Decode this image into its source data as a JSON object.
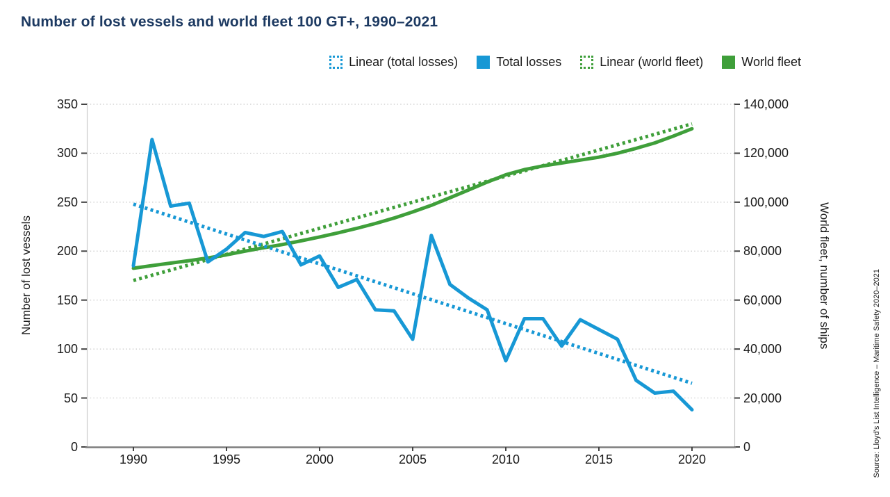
{
  "title": "Number of lost vessels and world fleet 100 GT+, 1990–2021",
  "colors": {
    "blue": "#1798d5",
    "green": "#3f9f3a",
    "title_navy": "#1c3961",
    "gridline": "#c9c9c9",
    "x_axis_line": "#7d7d7d",
    "tick_mark": "#444444"
  },
  "legend": {
    "items": [
      {
        "label": "Linear (total losses)",
        "style": "dotted",
        "color": "#1798d5"
      },
      {
        "label": "Total losses",
        "style": "solid",
        "color": "#1798d5"
      },
      {
        "label": "Linear (world fleet)",
        "style": "dotted",
        "color": "#3f9f3a"
      },
      {
        "label": "World fleet",
        "style": "solid",
        "color": "#3f9f3a"
      }
    ]
  },
  "axes": {
    "left": {
      "title": "Number of lost vessels",
      "ticks": [
        "350",
        "300",
        "250",
        "200",
        "150",
        "100",
        "50",
        "0"
      ]
    },
    "right": {
      "title": "World fleet, number of ships",
      "ticks": [
        "140,000",
        "120,000",
        "100,000",
        "80,000",
        "60,000",
        "40,000",
        "20,000",
        "0"
      ]
    },
    "x": {
      "ticks": [
        "1990",
        "1995",
        "2000",
        "2005",
        "2010",
        "2015",
        "2020"
      ]
    }
  },
  "source": "Source: Lloyd's List Intelligence – Maritime Safety 2020–2021",
  "chart_data": {
    "type": "line",
    "title": "Number of lost vessels and world fleet 100 GT+, 1990–2021",
    "ylabel_left": "Number of lost vessels",
    "ylabel_right": "World fleet, number of ships",
    "ylim_left": [
      0,
      350
    ],
    "ylim_right": [
      0,
      140000
    ],
    "xlim": [
      1990,
      2021
    ],
    "grid": true,
    "legend_position": "top",
    "x": [
      1990,
      1991,
      1992,
      1993,
      1994,
      1995,
      1996,
      1997,
      1998,
      1999,
      2000,
      2001,
      2002,
      2003,
      2004,
      2005,
      2006,
      2007,
      2008,
      2009,
      2010,
      2011,
      2012,
      2013,
      2014,
      2015,
      2016,
      2017,
      2018,
      2019,
      2020
    ],
    "series": [
      {
        "name": "World fleet",
        "axis": "right",
        "style": "solid",
        "color": "#3f9f3a",
        "values": [
          73000,
          74100,
          75100,
          76100,
          77200,
          78500,
          80000,
          81400,
          82700,
          84200,
          85800,
          87500,
          89300,
          91300,
          93500,
          96000,
          98700,
          101800,
          105000,
          108200,
          111200,
          113300,
          114800,
          116000,
          117200,
          118400,
          120000,
          122000,
          124200,
          127000,
          130000
        ]
      },
      {
        "name": "Linear (world fleet)",
        "axis": "right",
        "style": "dotted",
        "color": "#3f9f3a",
        "x": [
          1990,
          2020
        ],
        "values": [
          68000,
          132000
        ]
      },
      {
        "name": "Linear (total losses)",
        "axis": "left",
        "style": "dotted",
        "color": "#1798d5",
        "x": [
          1990,
          2020
        ],
        "values": [
          248,
          65
        ]
      },
      {
        "name": "Total losses",
        "axis": "left",
        "style": "solid",
        "color": "#1798d5",
        "values": [
          185,
          314,
          246,
          249,
          189,
          202,
          219,
          215,
          220,
          186,
          195,
          163,
          171,
          140,
          139,
          110,
          216,
          166,
          152,
          140,
          88,
          131,
          131,
          103,
          130,
          120,
          110,
          68,
          55,
          57,
          38
        ]
      }
    ]
  }
}
